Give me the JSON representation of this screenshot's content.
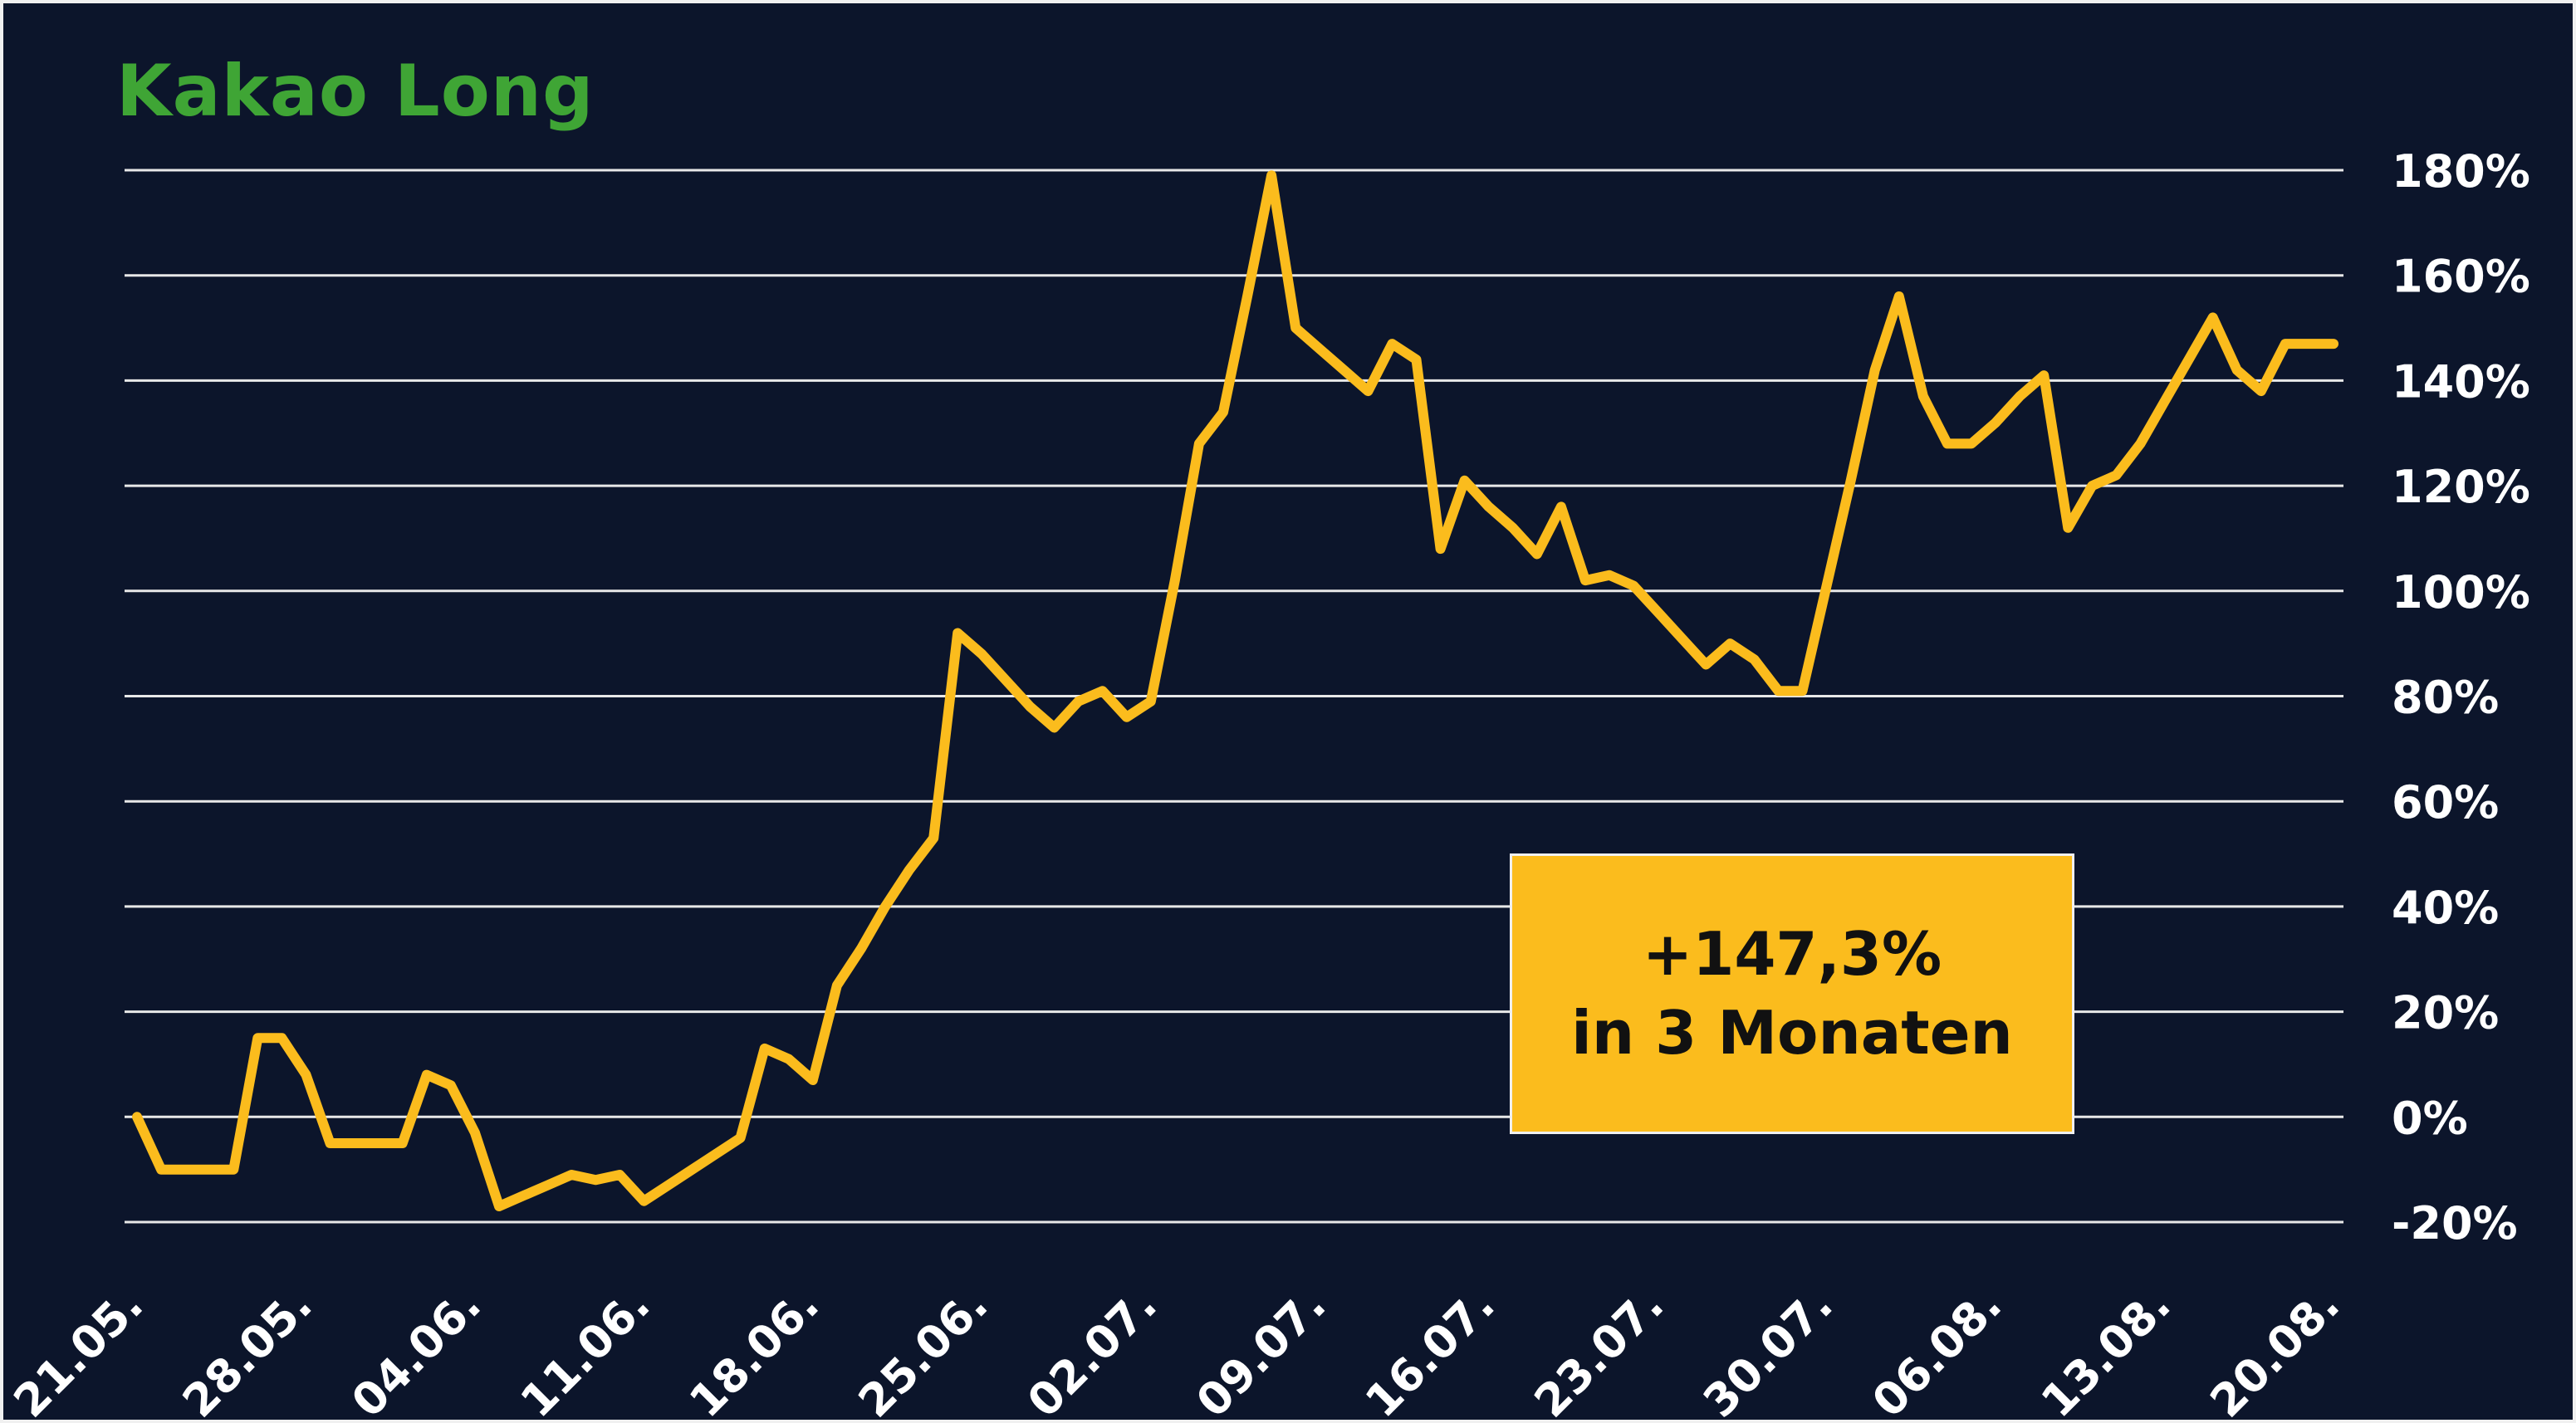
{
  "chart_data": {
    "type": "line",
    "title": "Kakao Long",
    "xlabel": "",
    "ylabel": "",
    "x_tick_labels": [
      "21.05.",
      "28.05.",
      "04.06.",
      "11.06.",
      "18.06.",
      "25.06.",
      "02.07.",
      "09.07.",
      "16.07.",
      "23.07.",
      "30.07.",
      "06.08.",
      "13.08.",
      "20.08."
    ],
    "y_tick_labels": [
      "-20%",
      "0%",
      "20%",
      "40%",
      "60%",
      "80%",
      "100%",
      "120%",
      "140%",
      "160%",
      "180%"
    ],
    "ylim": [
      -20,
      180
    ],
    "x_range_days": [
      0,
      91
    ],
    "grid": true,
    "legend": "none",
    "series": [
      {
        "x": [
          0,
          1,
          4,
          5,
          6,
          7,
          8,
          9,
          10,
          11,
          12,
          13,
          14,
          15,
          16,
          17,
          18,
          19,
          20,
          21,
          22,
          23,
          24,
          25,
          26,
          27,
          28,
          29,
          30,
          31,
          32,
          33,
          34,
          35,
          36,
          37,
          38,
          39,
          40,
          41,
          42,
          43,
          44,
          45,
          46,
          47,
          48,
          49,
          50,
          51,
          52,
          53,
          54,
          55,
          56,
          57,
          58,
          59,
          60,
          61,
          62,
          63,
          64,
          65,
          66,
          67,
          68,
          69,
          70,
          71,
          72,
          73,
          74,
          75,
          76,
          77,
          78,
          79,
          80,
          81,
          82,
          83,
          84,
          85,
          86,
          87,
          88,
          89,
          90,
          91
        ],
        "values": [
          0,
          -10,
          -10,
          15,
          15,
          8,
          -5,
          -5,
          -5,
          -5,
          8,
          6,
          -3,
          -17,
          -15,
          -13,
          -11,
          -12,
          -11,
          -16,
          -13,
          -10,
          -7,
          -4,
          13,
          11,
          7,
          25,
          32,
          40,
          47,
          53,
          92,
          88,
          83,
          78,
          74,
          79,
          81,
          76,
          79,
          102,
          128,
          134,
          156,
          179,
          150,
          146,
          142,
          138,
          147,
          144,
          108,
          121,
          116,
          112,
          107,
          116,
          102,
          103,
          101,
          96,
          91,
          86,
          90,
          87,
          81,
          81,
          101,
          121,
          142,
          156,
          137,
          128,
          128,
          132,
          137,
          141,
          112,
          120,
          122,
          128,
          136,
          144,
          152,
          142,
          138,
          147,
          147,
          147
        ],
        "color": "#fbbc1d"
      }
    ],
    "annotation": {
      "line1": "+147,3%",
      "line2": "in 3 Monaten"
    },
    "colors": {
      "background": "#0c152b",
      "gridline": "#e8e8e8",
      "line": "#fbbc1d",
      "title": "#3fa535",
      "callout": "#fbbc1d",
      "text": "#ffffff"
    }
  }
}
